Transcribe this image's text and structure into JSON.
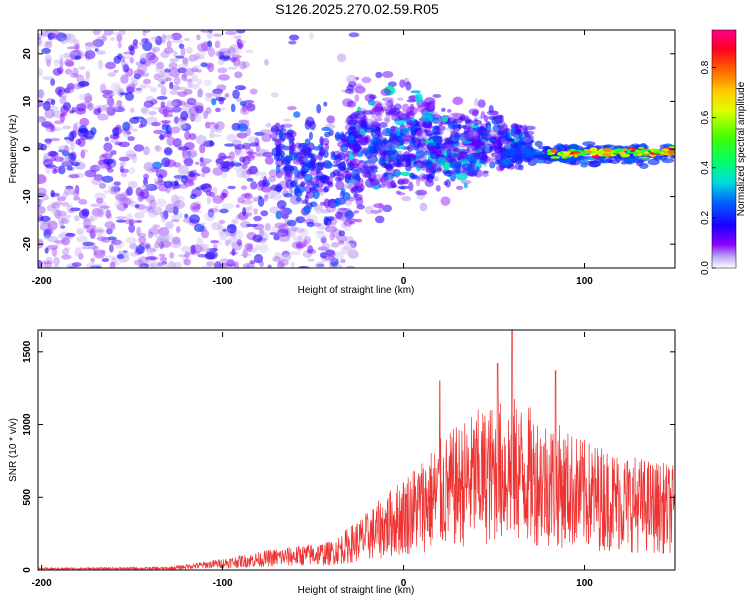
{
  "title": "S126.2025.270.02.59.R05",
  "colors": {
    "snr_line": "#ee3333",
    "axis": "#000000"
  },
  "chart_data": [
    {
      "type": "heatmap",
      "name": "spectrogram",
      "xlabel": "Height of straight line (km)",
      "ylabel": "Frequency (Hz)",
      "xlim": [
        -202,
        150
      ],
      "ylim": [
        -25,
        25
      ],
      "xticks": [
        -200,
        -100,
        0,
        100
      ],
      "yticks": [
        -20,
        -10,
        0,
        10,
        20
      ],
      "colorbar": {
        "label": "Normalized spectral amplitude",
        "range": [
          0,
          0.95
        ],
        "ticks": [
          "0.0",
          "0.2",
          "0.4",
          "0.6",
          "0.8"
        ],
        "tick_values": [
          0.0,
          0.2,
          0.4,
          0.6,
          0.8
        ]
      },
      "description_blobs": [
        {
          "x_range": [
            -200,
            -30
          ],
          "freq_spread": 25,
          "amplitude": 0.15
        },
        {
          "x_range": [
            -30,
            60
          ],
          "freq_spread": 12,
          "amplitude": 0.3
        },
        {
          "x_range": [
            60,
            150
          ],
          "freq_center": -1,
          "freq_spread": 1,
          "amplitude": 0.9
        }
      ]
    },
    {
      "type": "line",
      "name": "snr",
      "xlabel": "Height of straight line (km)",
      "ylabel": "SNR (10 * v/v)",
      "xlim": [
        -202,
        150
      ],
      "ylim": [
        0,
        1650
      ],
      "xticks": [
        -200,
        -100,
        0,
        100
      ],
      "yticks": [
        0,
        500,
        1000,
        1500
      ],
      "envelope": [
        {
          "x": -200,
          "y": 15
        },
        {
          "x": -130,
          "y": 20
        },
        {
          "x": -100,
          "y": 80
        },
        {
          "x": -70,
          "y": 150
        },
        {
          "x": -40,
          "y": 200
        },
        {
          "x": -20,
          "y": 400
        },
        {
          "x": 0,
          "y": 650
        },
        {
          "x": 20,
          "y": 900
        },
        {
          "x": 40,
          "y": 1100
        },
        {
          "x": 60,
          "y": 1200
        },
        {
          "x": 80,
          "y": 1050
        },
        {
          "x": 100,
          "y": 900
        },
        {
          "x": 125,
          "y": 800
        },
        {
          "x": 150,
          "y": 720
        }
      ],
      "peaks": [
        {
          "x": 20,
          "y": 1300
        },
        {
          "x": 52,
          "y": 1420
        },
        {
          "x": 60,
          "y": 1660
        },
        {
          "x": 84,
          "y": 1370
        }
      ]
    }
  ]
}
